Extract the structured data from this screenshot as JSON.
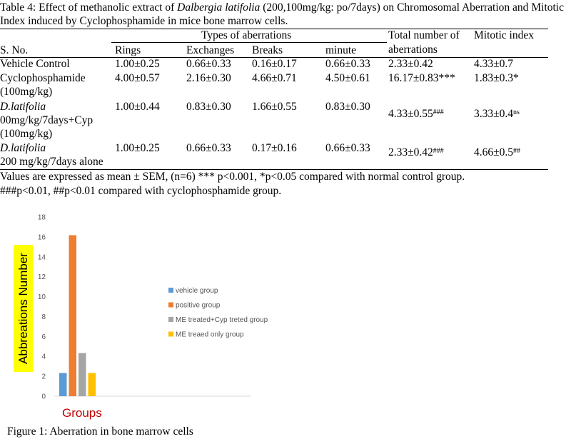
{
  "table": {
    "caption_parts": [
      {
        "text": "Table 4: Effect of methanolic extract of ",
        "italic": false
      },
      {
        "text": "Dalbergia latifolia",
        "italic": true
      },
      {
        "text": " (200,100mg/kg: po/7days) on Chromosomal Aberration and Mitotic Index induced by Cyclophosphamide in mice bone marrow cells.",
        "italic": false
      }
    ],
    "group_header": "Types of aberrations",
    "headers": {
      "sno": "S. No.",
      "rings": "Rings",
      "exchanges": "Exchanges",
      "breaks": "Breaks",
      "minute": "minute",
      "total_line1": "Total number of",
      "total_line2": "aberrations",
      "mitotic": "Mitotic index"
    },
    "rows": [
      {
        "group_lines": [
          "Vehicle Control"
        ],
        "group_italic_first": false,
        "rings": "1.00±0.25",
        "exchanges": "0.66±0.33",
        "breaks": "0.16±0.17",
        "minute": "0.66±0.33",
        "total": "2.33±0.42",
        "total_sup": "",
        "mitotic": "4.33±0.7",
        "mitotic_sup": ""
      },
      {
        "group_lines": [
          "Cyclophosphamide",
          "(100mg/kg)"
        ],
        "group_italic_first": false,
        "rings": "4.00±0.57",
        "exchanges": "2.16±0.30",
        "breaks": "4.66±0.71",
        "minute": "4.50±0.61",
        "total": "16.17±0.83***",
        "total_sup": "",
        "mitotic": "1.83±0.3*",
        "mitotic_sup": ""
      },
      {
        "group_lines": [
          "D.latifolia",
          "00mg/kg/7days+Cyp",
          "(100mg/kg)"
        ],
        "group_italic_first": true,
        "rings": "1.00±0.44",
        "exchanges": "0.83±0.30",
        "breaks": "1.66±0.55",
        "minute": "0.83±0.30",
        "total": "4.33±0.55",
        "total_sup": "###",
        "mitotic": "3.33±0.4",
        "mitotic_sup": "ns"
      },
      {
        "group_lines": [
          "D.latifolia",
          "200 mg/kg/7days alone"
        ],
        "group_italic_first": true,
        "rings": "1.00±0.25",
        "exchanges": "0.66±0.33",
        "breaks": "0.17±0.16",
        "minute": "0.66±0.33",
        "total": "2.33±0.42",
        "total_sup": "###",
        "mitotic": "4.66±0.5",
        "mitotic_sup": "##"
      }
    ],
    "notes": [
      "Values are expressed as mean ± SEM, (n=6) *** p<0.001, *p<0.05 compared with normal control group.",
      "###p<0.01, ##p<0.01 compared with cyclophosphamide group."
    ]
  },
  "figure": {
    "caption": "Figure 1: Aberration in bone marrow cells"
  },
  "chart_data": {
    "type": "bar",
    "title": "",
    "xlabel": "Groups",
    "ylabel": "Abbreations Number",
    "ylim": [
      0,
      18
    ],
    "yticks": [
      0,
      2,
      4,
      6,
      8,
      10,
      12,
      14,
      16,
      18
    ],
    "grid": false,
    "legend_position": "right",
    "series": [
      {
        "name": "vehicle group",
        "value": 2.33,
        "color": "#5b9bd5"
      },
      {
        "name": "positive group",
        "value": 16.17,
        "color": "#ed7d31"
      },
      {
        "name": "ME treated+Cyp treted group",
        "value": 4.33,
        "color": "#a5a5a5"
      },
      {
        "name": "ME treaed only group",
        "value": 2.33,
        "color": "#ffc000"
      }
    ]
  }
}
